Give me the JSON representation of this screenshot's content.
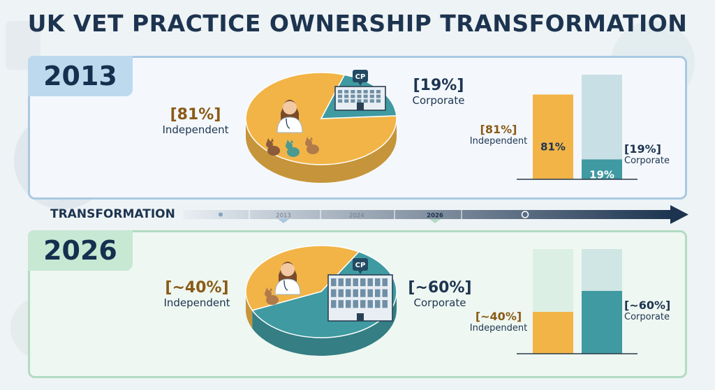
{
  "title": "UK VET PRACTICE OWNERSHIP TRANSFORMATION",
  "colors": {
    "independent": "#f2b447",
    "corporate": "#3f9aa1",
    "navy": "#1d3450",
    "independent_text": "#8a5a16"
  },
  "timeline": {
    "label": "TRANSFORMATION",
    "ticks": [
      "2013",
      "2024",
      "2026"
    ]
  },
  "chart_data": [
    {
      "type": "pie",
      "year": "2013",
      "slices": [
        {
          "name": "Independent",
          "label": "[81%]",
          "value": 81
        },
        {
          "name": "Corporate",
          "label": "[19%]",
          "value": 19
        }
      ],
      "icons": [
        "vet-person-icon",
        "pets-icon",
        "corporate-building-icon"
      ],
      "building_badge": "CP"
    },
    {
      "type": "bar",
      "year": "2013",
      "categories": [
        "Independent",
        "Corporate"
      ],
      "values": [
        81,
        19
      ],
      "value_labels": [
        "81%",
        "19%"
      ],
      "side_labels": [
        "[81%]",
        "[19%]"
      ],
      "ylim": [
        0,
        100
      ]
    },
    {
      "type": "pie",
      "year": "2026",
      "slices": [
        {
          "name": "Independent",
          "label": "[~40%]",
          "value": 40
        },
        {
          "name": "Corporate",
          "label": "[~60%]",
          "value": 60
        }
      ],
      "icons": [
        "vet-person-icon",
        "cat-icon",
        "corporate-building-icon"
      ],
      "building_badge": "CP"
    },
    {
      "type": "bar",
      "year": "2026",
      "categories": [
        "Independent",
        "Corporate"
      ],
      "values": [
        40,
        60
      ],
      "side_labels": [
        "[~40%]",
        "[~60%]"
      ],
      "ylim": [
        0,
        100
      ]
    }
  ]
}
